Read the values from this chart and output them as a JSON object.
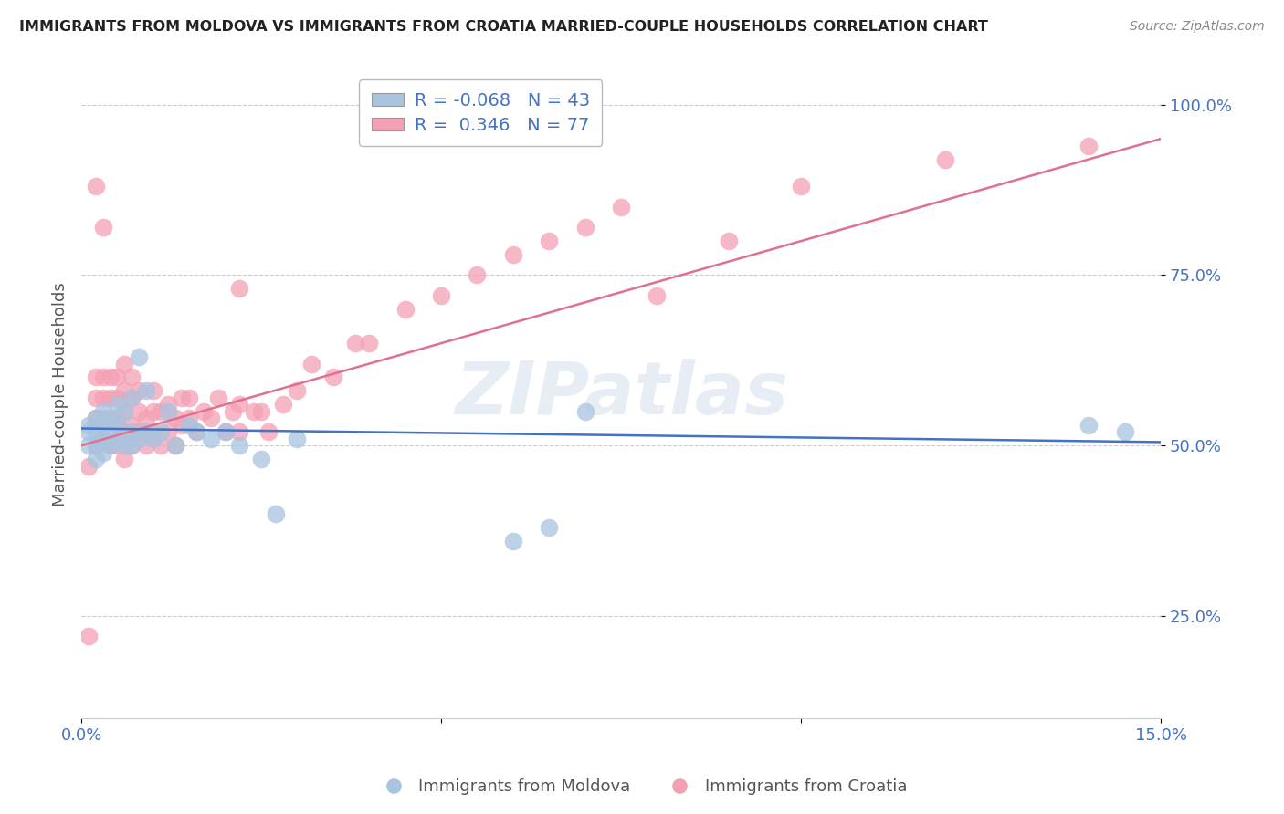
{
  "title": "IMMIGRANTS FROM MOLDOVA VS IMMIGRANTS FROM CROATIA MARRIED-COUPLE HOUSEHOLDS CORRELATION CHART",
  "source": "Source: ZipAtlas.com",
  "ylabel": "Married-couple Households",
  "xlim": [
    0.0,
    0.15
  ],
  "ylim": [
    0.1,
    1.05
  ],
  "yticks": [
    0.25,
    0.5,
    0.75,
    1.0
  ],
  "ytick_labels": [
    "25.0%",
    "50.0%",
    "75.0%",
    "100.0%"
  ],
  "xtick_labels": [
    "0.0%",
    "",
    "",
    "15.0%"
  ],
  "legend_R_blue": "-0.068",
  "legend_N_blue": "43",
  "legend_R_pink": "0.346",
  "legend_N_pink": "77",
  "blue_color": "#a8c4e0",
  "pink_color": "#f4a0b4",
  "blue_line_color": "#4472c4",
  "pink_line_color": "#e07090",
  "scatter_blue_x": [
    0.001,
    0.001,
    0.001,
    0.002,
    0.002,
    0.002,
    0.002,
    0.003,
    0.003,
    0.003,
    0.003,
    0.004,
    0.004,
    0.004,
    0.005,
    0.005,
    0.005,
    0.006,
    0.006,
    0.007,
    0.007,
    0.007,
    0.008,
    0.008,
    0.009,
    0.009,
    0.01,
    0.011,
    0.012,
    0.013,
    0.015,
    0.016,
    0.018,
    0.02,
    0.022,
    0.025,
    0.027,
    0.03,
    0.06,
    0.065,
    0.07,
    0.14,
    0.145
  ],
  "scatter_blue_y": [
    0.52,
    0.5,
    0.53,
    0.5,
    0.52,
    0.54,
    0.48,
    0.51,
    0.53,
    0.55,
    0.49,
    0.52,
    0.5,
    0.54,
    0.51,
    0.53,
    0.56,
    0.5,
    0.55,
    0.52,
    0.5,
    0.57,
    0.51,
    0.63,
    0.52,
    0.58,
    0.51,
    0.52,
    0.55,
    0.5,
    0.53,
    0.52,
    0.51,
    0.52,
    0.5,
    0.48,
    0.4,
    0.51,
    0.36,
    0.38,
    0.55,
    0.53,
    0.52
  ],
  "scatter_pink_x": [
    0.001,
    0.001,
    0.002,
    0.002,
    0.002,
    0.002,
    0.003,
    0.003,
    0.003,
    0.003,
    0.003,
    0.004,
    0.004,
    0.004,
    0.004,
    0.005,
    0.005,
    0.005,
    0.005,
    0.006,
    0.006,
    0.006,
    0.006,
    0.006,
    0.007,
    0.007,
    0.007,
    0.007,
    0.008,
    0.008,
    0.008,
    0.009,
    0.009,
    0.01,
    0.01,
    0.01,
    0.011,
    0.011,
    0.012,
    0.012,
    0.013,
    0.013,
    0.014,
    0.014,
    0.015,
    0.015,
    0.016,
    0.017,
    0.018,
    0.019,
    0.02,
    0.021,
    0.022,
    0.022,
    0.024,
    0.025,
    0.026,
    0.028,
    0.03,
    0.032,
    0.035,
    0.038,
    0.04,
    0.045,
    0.05,
    0.055,
    0.06,
    0.065,
    0.07,
    0.075,
    0.08,
    0.09,
    0.1,
    0.12,
    0.14,
    0.002,
    0.022
  ],
  "scatter_pink_y": [
    0.22,
    0.47,
    0.5,
    0.54,
    0.57,
    0.6,
    0.51,
    0.54,
    0.57,
    0.6,
    0.82,
    0.5,
    0.54,
    0.57,
    0.6,
    0.5,
    0.54,
    0.57,
    0.6,
    0.48,
    0.52,
    0.55,
    0.58,
    0.62,
    0.5,
    0.53,
    0.57,
    0.6,
    0.52,
    0.55,
    0.58,
    0.5,
    0.54,
    0.52,
    0.55,
    0.58,
    0.5,
    0.55,
    0.52,
    0.56,
    0.5,
    0.54,
    0.53,
    0.57,
    0.54,
    0.57,
    0.52,
    0.55,
    0.54,
    0.57,
    0.52,
    0.55,
    0.52,
    0.56,
    0.55,
    0.55,
    0.52,
    0.56,
    0.58,
    0.62,
    0.6,
    0.65,
    0.65,
    0.7,
    0.72,
    0.75,
    0.78,
    0.8,
    0.82,
    0.85,
    0.72,
    0.8,
    0.88,
    0.92,
    0.94,
    0.88,
    0.73
  ],
  "pink_line_x0": 0.0,
  "pink_line_y0": 0.5,
  "pink_line_x1": 0.15,
  "pink_line_y1": 0.95,
  "blue_line_x0": 0.0,
  "blue_line_y0": 0.525,
  "blue_line_x1": 0.15,
  "blue_line_y1": 0.505
}
